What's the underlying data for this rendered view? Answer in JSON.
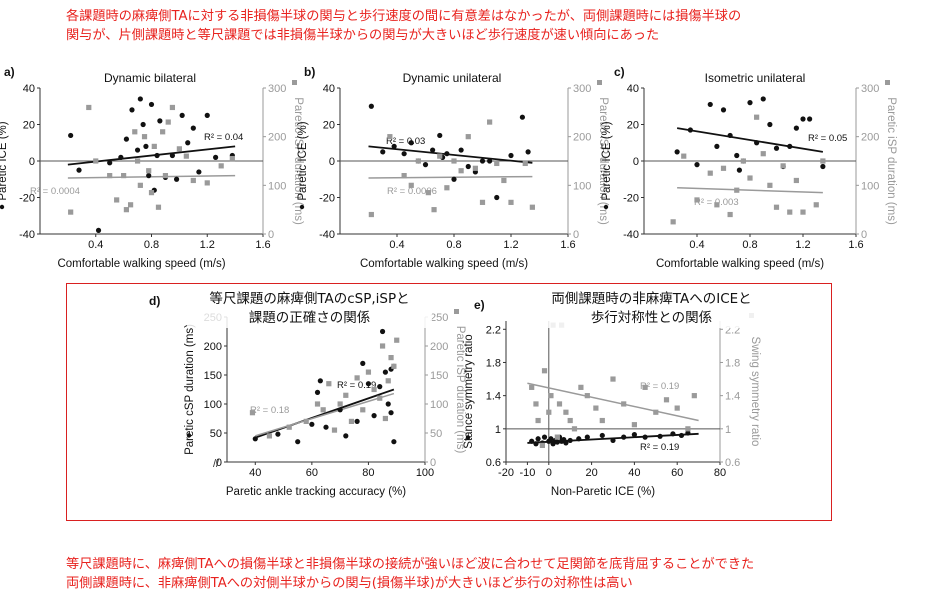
{
  "notes": {
    "top": [
      "各課題時の麻痺側TAに対する非損傷半球の関与と歩行速度の間に有意差はなかったが、両側課題時には損傷半球の",
      "関与が、片側課題時と等尺課題では非損傷半球からの関与が大きいほど歩行速度が速い傾向にあった"
    ],
    "bottom": [
      "等尺課題時に、麻痺側TAへの損傷半球と非損傷半球の接続が強いほど波に合わせて足関節を底背屈することができた",
      "両側課題時に、非麻痺側TAへの対側半球からの関与(損傷半球)が大きいほど歩行の対称性は高い"
    ]
  },
  "colors": {
    "note": "#e8231f",
    "series_black": "#111111",
    "series_gray": "#9a9a9a",
    "box": "#d92020"
  },
  "chart_data": [
    {
      "type": "scatter",
      "panel": "a)",
      "title": "Dynamic bilateral",
      "xlabel": "Comfortable walking speed (m/s)",
      "ylabel_left": "Paretic ICE (%)",
      "ylabel_right": "Paretic iSP duration (ms)",
      "xlim": [
        0,
        1.6
      ],
      "ylim_left": [
        -40,
        40
      ],
      "ylim_right": [
        0,
        300
      ],
      "xticks": [
        0.4,
        0.8,
        1.2,
        1.6
      ],
      "yticks_left": [
        -40,
        -20,
        0,
        20,
        40
      ],
      "yticks_right": [
        0,
        100,
        200,
        300
      ],
      "series": [
        {
          "axis": "left",
          "color": "black",
          "marker": "circle",
          "x": [
            0.22,
            0.28,
            0.42,
            0.5,
            0.58,
            0.62,
            0.66,
            0.7,
            0.72,
            0.74,
            0.76,
            0.78,
            0.8,
            0.82,
            0.84,
            0.86,
            0.9,
            0.95,
            0.98,
            1.02,
            1.06,
            1.1,
            1.14,
            1.2,
            1.26,
            1.38
          ],
          "y": [
            14,
            -5,
            -38,
            -1,
            2,
            12,
            28,
            6,
            34,
            20,
            8,
            -8,
            31,
            -16,
            3,
            22,
            -9,
            3,
            -10,
            25,
            10,
            18,
            -6,
            25,
            2,
            3
          ]
        },
        {
          "axis": "right",
          "color": "gray",
          "marker": "square",
          "x": [
            0.22,
            0.35,
            0.4,
            0.5,
            0.55,
            0.6,
            0.62,
            0.65,
            0.68,
            0.7,
            0.72,
            0.75,
            0.78,
            0.8,
            0.82,
            0.85,
            0.88,
            0.9,
            0.92,
            0.95,
            1.0,
            1.05,
            1.1,
            1.2,
            1.3,
            1.38
          ],
          "y": [
            45,
            260,
            150,
            120,
            70,
            120,
            50,
            60,
            210,
            150,
            100,
            200,
            130,
            85,
            180,
            55,
            210,
            120,
            230,
            260,
            175,
            160,
            110,
            105,
            140,
            155
          ]
        }
      ],
      "fits": [
        {
          "axis": "left",
          "color": "black",
          "x": [
            0.2,
            1.4
          ],
          "y": [
            -2,
            8
          ],
          "label": "R² = 0.04"
        },
        {
          "axis": "right",
          "color": "gray",
          "x": [
            0.2,
            1.4
          ],
          "y": [
            115,
            120
          ],
          "label": "R² = 0.0004"
        }
      ]
    },
    {
      "type": "scatter",
      "panel": "b)",
      "title": "Dynamic unilateral",
      "xlabel": "Comfortable walking speed (m/s)",
      "ylabel_left": "Paretic ICE (%)",
      "ylabel_right": "Paretic iSP duration (ms)",
      "xlim": [
        0,
        1.6
      ],
      "ylim_left": [
        -40,
        40
      ],
      "ylim_right": [
        0,
        300
      ],
      "xticks": [
        0.4,
        0.8,
        1.2,
        1.6
      ],
      "yticks_left": [
        -40,
        -20,
        0,
        20,
        40
      ],
      "yticks_right": [
        0,
        100,
        200,
        300
      ],
      "series": [
        {
          "axis": "left",
          "color": "black",
          "marker": "circle",
          "x": [
            0.22,
            0.3,
            0.38,
            0.45,
            0.5,
            0.55,
            0.6,
            0.65,
            0.7,
            0.72,
            0.75,
            0.8,
            0.85,
            0.9,
            0.95,
            1.0,
            1.05,
            1.1,
            1.2,
            1.28,
            1.32
          ],
          "y": [
            30,
            5,
            8,
            4,
            10,
            0,
            -2,
            6,
            14,
            2,
            4,
            -10,
            6,
            -3,
            -6,
            0,
            0,
            -20,
            3,
            24,
            5
          ]
        },
        {
          "axis": "right",
          "color": "gray",
          "marker": "square",
          "x": [
            0.22,
            0.35,
            0.45,
            0.5,
            0.55,
            0.62,
            0.66,
            0.7,
            0.75,
            0.8,
            0.85,
            0.9,
            0.95,
            1.0,
            1.05,
            1.1,
            1.15,
            1.2,
            1.3,
            1.35
          ],
          "y": [
            40,
            200,
            120,
            100,
            150,
            85,
            50,
            160,
            95,
            150,
            130,
            200,
            135,
            65,
            230,
            145,
            110,
            65,
            145,
            55
          ]
        }
      ],
      "fits": [
        {
          "axis": "left",
          "color": "black",
          "x": [
            0.2,
            1.35
          ],
          "y": [
            8,
            -1
          ],
          "label": "R² = 0.03"
        },
        {
          "axis": "right",
          "color": "gray",
          "x": [
            0.2,
            1.35
          ],
          "y": [
            115,
            118
          ],
          "label": "R² = 0.0006"
        }
      ]
    },
    {
      "type": "scatter",
      "panel": "c)",
      "title": "Isometric unilateral",
      "xlabel": "Comfortable walking speed (m/s)",
      "ylabel_left": "Paretic ICE (%)",
      "ylabel_right": "Paretic iSP duration (ms)",
      "xlim": [
        0,
        1.6
      ],
      "ylim_left": [
        -40,
        40
      ],
      "ylim_right": [
        0,
        300
      ],
      "xticks": [
        0.4,
        0.8,
        1.2,
        1.6
      ],
      "yticks_left": [
        -40,
        -20,
        0,
        20,
        40
      ],
      "yticks_right": [
        0,
        100,
        200,
        300
      ],
      "series": [
        {
          "axis": "left",
          "color": "black",
          "marker": "circle",
          "x": [
            0.25,
            0.35,
            0.4,
            0.5,
            0.55,
            0.6,
            0.65,
            0.7,
            0.72,
            0.75,
            0.8,
            0.85,
            0.9,
            0.95,
            1.0,
            1.05,
            1.1,
            1.15,
            1.2,
            1.25,
            1.35
          ],
          "y": [
            5,
            17,
            -2,
            31,
            8,
            28,
            14,
            3,
            -5,
            0,
            32,
            10,
            34,
            20,
            7,
            -3,
            8,
            18,
            23,
            23,
            -3
          ]
        },
        {
          "axis": "right",
          "color": "gray",
          "marker": "square",
          "x": [
            0.22,
            0.3,
            0.4,
            0.5,
            0.55,
            0.6,
            0.65,
            0.7,
            0.75,
            0.8,
            0.85,
            0.9,
            0.95,
            1.0,
            1.05,
            1.1,
            1.15,
            1.2,
            1.3,
            1.35
          ],
          "y": [
            25,
            160,
            70,
            125,
            60,
            135,
            40,
            90,
            150,
            115,
            240,
            165,
            100,
            55,
            140,
            45,
            110,
            45,
            60,
            150
          ]
        }
      ],
      "fits": [
        {
          "axis": "left",
          "color": "black",
          "x": [
            0.25,
            1.35
          ],
          "y": [
            18,
            5
          ],
          "label": "R² = 0.05"
        },
        {
          "axis": "right",
          "color": "gray",
          "x": [
            0.25,
            1.35
          ],
          "y": [
            95,
            85
          ],
          "label": "R² = 0.003"
        }
      ]
    },
    {
      "type": "scatter",
      "panel": "d)",
      "title_jp": [
        "等尺課題の麻痺側TAのcSP,iSPと",
        "課題の正確さの関係"
      ],
      "xlabel": "Paretic ankle tracking accuracy (%)",
      "ylabel_left": "Paretic cSP duration (ms)",
      "ylabel_right": "Paretic iSP duration (ms)",
      "xlim": [
        30,
        100
      ],
      "ylim_left": [
        0,
        250
      ],
      "ylim_right": [
        0,
        250
      ],
      "xticks": [
        40,
        60,
        80,
        100
      ],
      "yticks_left": [
        0,
        50,
        100,
        150,
        200,
        250
      ],
      "yticks_right": [
        0,
        50,
        100,
        150,
        200,
        250
      ],
      "series": [
        {
          "axis": "left",
          "color": "black",
          "marker": "circle",
          "x": [
            40,
            48,
            55,
            60,
            62,
            63,
            65,
            70,
            72,
            76,
            78,
            80,
            82,
            84,
            85,
            86,
            87,
            88,
            88,
            89,
            89
          ],
          "y": [
            40,
            48,
            35,
            65,
            120,
            140,
            60,
            90,
            45,
            70,
            170,
            135,
            80,
            130,
            225,
            155,
            100,
            160,
            85,
            165,
            35
          ]
        },
        {
          "axis": "right",
          "color": "gray",
          "marker": "square",
          "x": [
            39,
            45,
            52,
            58,
            62,
            64,
            66,
            68,
            70,
            72,
            74,
            76,
            78,
            80,
            82,
            84,
            85,
            86,
            87,
            88,
            89,
            90
          ],
          "y": [
            85,
            45,
            60,
            70,
            100,
            90,
            135,
            55,
            100,
            115,
            70,
            145,
            90,
            155,
            125,
            110,
            200,
            75,
            140,
            180,
            165,
            210
          ]
        }
      ],
      "fits": [
        {
          "axis": "left",
          "color": "black",
          "x": [
            40,
            89
          ],
          "y": [
            42,
            125
          ],
          "label": "R² = 0.19"
        },
        {
          "axis": "right",
          "color": "gray",
          "x": [
            40,
            89
          ],
          "y": [
            45,
            118
          ],
          "label": "R² = 0.18"
        }
      ]
    },
    {
      "type": "scatter",
      "panel": "e)",
      "title_jp": [
        "両側課題時の非麻痺TAへのICEと",
        "歩行対称性との関係"
      ],
      "xlabel": "Non-Paretic ICE (%)",
      "ylabel_left": "Stance symmetry ratio",
      "ylabel_right": "Swing symmetry ratio",
      "xlim": [
        -20,
        80
      ],
      "ylim_left": [
        0.6,
        2.3
      ],
      "ylim_right": [
        0.6,
        2.3
      ],
      "xticks": [
        -20,
        -10,
        0,
        20,
        40,
        60,
        80
      ],
      "yticks_left": [
        0.6,
        1,
        1.4,
        1.8,
        2.2
      ],
      "yticks_right": [
        0.6,
        1,
        1.4,
        1.8,
        2.2
      ],
      "series": [
        {
          "axis": "left",
          "color": "black",
          "marker": "circle",
          "x": [
            -8,
            -6,
            -5,
            -3,
            -2,
            0,
            1,
            2,
            3,
            4,
            5,
            6,
            7,
            8,
            10,
            14,
            18,
            25,
            30,
            35,
            40,
            45,
            52,
            58,
            62,
            65
          ],
          "y": [
            0.85,
            0.82,
            0.88,
            0.83,
            0.9,
            0.85,
            0.88,
            0.82,
            0.86,
            0.84,
            0.9,
            0.85,
            0.87,
            0.83,
            0.86,
            0.88,
            0.9,
            0.92,
            0.86,
            0.9,
            0.93,
            0.9,
            0.91,
            0.94,
            0.92,
            0.95
          ]
        },
        {
          "axis": "right",
          "color": "gray",
          "marker": "square",
          "x": [
            -8,
            -6,
            -5,
            -3,
            -2,
            0,
            1,
            2,
            4,
            5,
            6,
            8,
            10,
            12,
            15,
            18,
            22,
            25,
            30,
            35,
            40,
            45,
            50,
            55,
            60,
            65,
            68
          ],
          "y": [
            1.5,
            1.3,
            1.1,
            0.8,
            1.7,
            1.2,
            1.4,
            2.25,
            0.9,
            1.3,
            2.25,
            1.2,
            1.1,
            1.0,
            1.5,
            1.4,
            1.25,
            1.1,
            1.6,
            1.3,
            1.05,
            1.5,
            1.2,
            1.35,
            1.25,
            1.0,
            1.4
          ]
        }
      ],
      "fits": [
        {
          "axis": "left",
          "color": "black",
          "x": [
            -10,
            70
          ],
          "y": [
            0.83,
            0.94
          ],
          "label": "R² = 0.19"
        },
        {
          "axis": "right",
          "color": "gray",
          "x": [
            -10,
            70
          ],
          "y": [
            1.55,
            1.1
          ],
          "label": "R² = 0.19"
        }
      ]
    }
  ]
}
